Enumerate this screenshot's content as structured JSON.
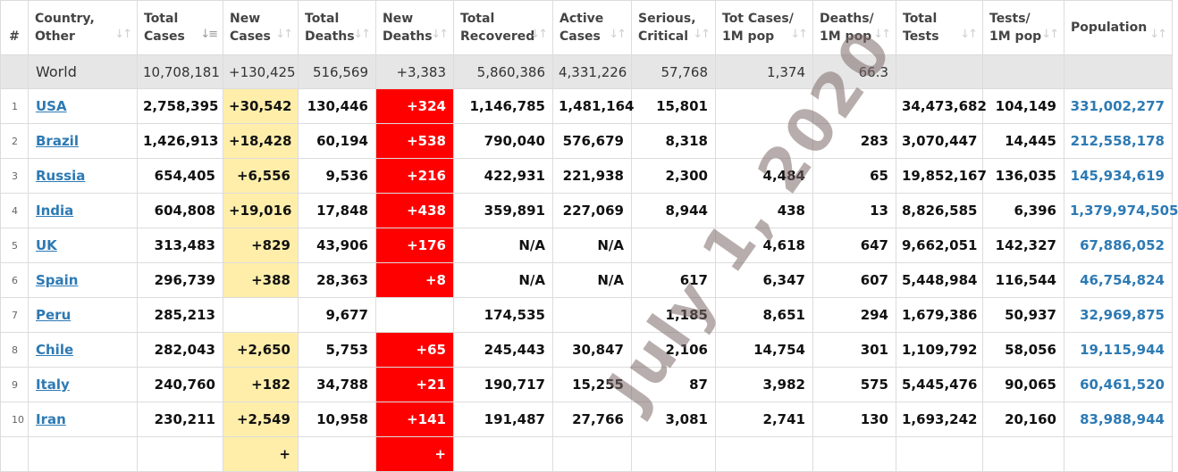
{
  "columns": [
    {
      "key": "idx",
      "lines": [
        "#"
      ],
      "sort": ""
    },
    {
      "key": "country",
      "lines": [
        "Country,",
        "Other"
      ],
      "sort": "↓↑"
    },
    {
      "key": "total_cases",
      "lines": [
        "Total",
        "Cases"
      ],
      "sort": "↓↑"
    },
    {
      "key": "new_cases",
      "lines": [
        "New",
        "Cases"
      ],
      "sort": "↓↑"
    },
    {
      "key": "total_deaths",
      "lines": [
        "Total",
        "Deaths"
      ],
      "sort": "↓↑"
    },
    {
      "key": "new_deaths",
      "lines": [
        "New",
        "Deaths"
      ],
      "sort": "↓↑"
    },
    {
      "key": "total_recovered",
      "lines": [
        "Total",
        "Recovered"
      ],
      "sort": "↓↑"
    },
    {
      "key": "active_cases",
      "lines": [
        "Active",
        "Cases"
      ],
      "sort": "↓↑"
    },
    {
      "key": "serious_critical",
      "lines": [
        "Serious,",
        "Critical"
      ],
      "sort": "↓↑"
    },
    {
      "key": "tot_cases_1m",
      "lines": [
        "Tot Cases/",
        "1M pop"
      ],
      "sort": "↓↑"
    },
    {
      "key": "deaths_1m",
      "lines": [
        "Deaths/",
        "1M pop"
      ],
      "sort": "↓↑"
    },
    {
      "key": "total_tests",
      "lines": [
        "Total",
        "Tests"
      ],
      "sort": "↓↑"
    },
    {
      "key": "tests_1m",
      "lines": [
        "Tests/",
        "1M pop"
      ],
      "sort": "↓↑"
    },
    {
      "key": "population",
      "lines": [
        "Population"
      ],
      "sort": "↓↑"
    }
  ],
  "active_sort_column": "total_cases",
  "active_sort_icon": "↓≡",
  "world": {
    "label": "World",
    "total_cases": "10,708,181",
    "new_cases": "+130,425",
    "total_deaths": "516,569",
    "new_deaths": "+3,383",
    "total_recovered": "5,860,386",
    "active_cases": "4,331,226",
    "serious_critical": "57,768",
    "tot_cases_1m": "1,374",
    "deaths_1m": "66.3",
    "total_tests": "",
    "tests_1m": "",
    "population": ""
  },
  "rows": [
    {
      "idx": "1",
      "country": "USA",
      "total_cases": "2,758,395",
      "new_cases": "+30,542",
      "total_deaths": "130,446",
      "new_deaths": "+324",
      "total_recovered": "1,146,785",
      "active_cases": "1,481,164",
      "serious_critical": "15,801",
      "tot_cases_1m": "",
      "deaths_1m": "",
      "total_tests": "34,473,682",
      "tests_1m": "104,149",
      "population": "331,002,277"
    },
    {
      "idx": "2",
      "country": "Brazil",
      "total_cases": "1,426,913",
      "new_cases": "+18,428",
      "total_deaths": "60,194",
      "new_deaths": "+538",
      "total_recovered": "790,040",
      "active_cases": "576,679",
      "serious_critical": "8,318",
      "tot_cases_1m": "",
      "deaths_1m": "283",
      "total_tests": "3,070,447",
      "tests_1m": "14,445",
      "population": "212,558,178"
    },
    {
      "idx": "3",
      "country": "Russia",
      "total_cases": "654,405",
      "new_cases": "+6,556",
      "total_deaths": "9,536",
      "new_deaths": "+216",
      "total_recovered": "422,931",
      "active_cases": "221,938",
      "serious_critical": "2,300",
      "tot_cases_1m": "4,484",
      "deaths_1m": "65",
      "total_tests": "19,852,167",
      "tests_1m": "136,035",
      "population": "145,934,619"
    },
    {
      "idx": "4",
      "country": "India",
      "total_cases": "604,808",
      "new_cases": "+19,016",
      "total_deaths": "17,848",
      "new_deaths": "+438",
      "total_recovered": "359,891",
      "active_cases": "227,069",
      "serious_critical": "8,944",
      "tot_cases_1m": "438",
      "deaths_1m": "13",
      "total_tests": "8,826,585",
      "tests_1m": "6,396",
      "population": "1,379,974,505"
    },
    {
      "idx": "5",
      "country": "UK",
      "total_cases": "313,483",
      "new_cases": "+829",
      "total_deaths": "43,906",
      "new_deaths": "+176",
      "total_recovered": "N/A",
      "active_cases": "N/A",
      "serious_critical": "",
      "tot_cases_1m": "4,618",
      "deaths_1m": "647",
      "total_tests": "9,662,051",
      "tests_1m": "142,327",
      "population": "67,886,052"
    },
    {
      "idx": "6",
      "country": "Spain",
      "total_cases": "296,739",
      "new_cases": "+388",
      "total_deaths": "28,363",
      "new_deaths": "+8",
      "total_recovered": "N/A",
      "active_cases": "N/A",
      "serious_critical": "617",
      "tot_cases_1m": "6,347",
      "deaths_1m": "607",
      "total_tests": "5,448,984",
      "tests_1m": "116,544",
      "population": "46,754,824"
    },
    {
      "idx": "7",
      "country": "Peru",
      "total_cases": "285,213",
      "new_cases": "",
      "total_deaths": "9,677",
      "new_deaths": "",
      "total_recovered": "174,535",
      "active_cases": "",
      "serious_critical": "1,185",
      "tot_cases_1m": "8,651",
      "deaths_1m": "294",
      "total_tests": "1,679,386",
      "tests_1m": "50,937",
      "population": "32,969,875"
    },
    {
      "idx": "8",
      "country": "Chile",
      "total_cases": "282,043",
      "new_cases": "+2,650",
      "total_deaths": "5,753",
      "new_deaths": "+65",
      "total_recovered": "245,443",
      "active_cases": "30,847",
      "serious_critical": "2,106",
      "tot_cases_1m": "14,754",
      "deaths_1m": "301",
      "total_tests": "1,109,792",
      "tests_1m": "58,056",
      "population": "19,115,944"
    },
    {
      "idx": "9",
      "country": "Italy",
      "total_cases": "240,760",
      "new_cases": "+182",
      "total_deaths": "34,788",
      "new_deaths": "+21",
      "total_recovered": "190,717",
      "active_cases": "15,255",
      "serious_critical": "87",
      "tot_cases_1m": "3,982",
      "deaths_1m": "575",
      "total_tests": "5,445,476",
      "tests_1m": "90,065",
      "population": "60,461,520"
    },
    {
      "idx": "10",
      "country": "Iran",
      "total_cases": "230,211",
      "new_cases": "+2,549",
      "total_deaths": "10,958",
      "new_deaths": "+141",
      "total_recovered": "191,487",
      "active_cases": "27,766",
      "serious_critical": "3,081",
      "tot_cases_1m": "2,741",
      "deaths_1m": "130",
      "total_tests": "1,693,242",
      "tests_1m": "20,160",
      "population": "83,988,944"
    },
    {
      "idx": "",
      "country": "",
      "total_cases": "",
      "new_cases": "+",
      "total_deaths": "",
      "new_deaths": "+",
      "total_recovered": "",
      "active_cases": "",
      "serious_critical": "",
      "tot_cases_1m": "",
      "deaths_1m": "",
      "total_tests": "",
      "tests_1m": "",
      "population": ""
    }
  ],
  "watermark": "July 1, 2020",
  "colors": {
    "new_cases_highlight": "#ffeeaa",
    "new_deaths_highlight": "#ff0000",
    "link": "#2d7ab4",
    "world_row": "#e6e6e6",
    "watermark": "#7d6969"
  }
}
